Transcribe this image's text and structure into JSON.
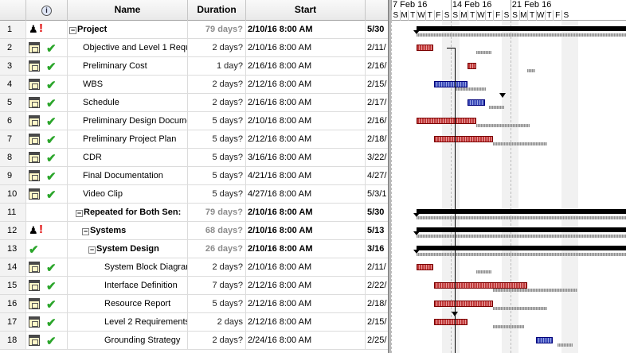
{
  "columns": {
    "indicators_icon": "info-icon",
    "name": "Name",
    "duration": "Duration",
    "start": "Start"
  },
  "timescale": {
    "weeks": [
      "7 Feb 16",
      "14 Feb 16",
      "21 Feb 16"
    ],
    "days": [
      "S",
      "M",
      "T",
      "W",
      "T",
      "F",
      "S",
      "S",
      "M",
      "T",
      "W",
      "T",
      "F",
      "S",
      "S",
      "M",
      "T",
      "W",
      "T",
      "F",
      "S"
    ]
  },
  "tasks": [
    {
      "id": "1",
      "name": "Project",
      "duration": "79 days?",
      "start": "2/10/16 8:00 AM",
      "finish": "5/30",
      "summary": true,
      "indent": 0,
      "icons": [
        "person-icon",
        "exclamation-icon"
      ]
    },
    {
      "id": "2",
      "name": "Objective and Level 1 Requ",
      "duration": "2 days?",
      "start": "2/10/16 8:00 AM",
      "finish": "2/11/",
      "summary": false,
      "indent": 1,
      "icons": [
        "calendar-icon",
        "check-icon"
      ]
    },
    {
      "id": "3",
      "name": "Preliminary Cost",
      "duration": "1 day?",
      "start": "2/16/16 8:00 AM",
      "finish": "2/16/",
      "summary": false,
      "indent": 1,
      "icons": [
        "calendar-icon",
        "check-icon"
      ]
    },
    {
      "id": "4",
      "name": "WBS",
      "duration": "2 days?",
      "start": "2/12/16 8:00 AM",
      "finish": "2/15/",
      "summary": false,
      "indent": 1,
      "icons": [
        "calendar-icon",
        "check-icon"
      ]
    },
    {
      "id": "5",
      "name": "Schedule",
      "duration": "2 days?",
      "start": "2/16/16 8:00 AM",
      "finish": "2/17/",
      "summary": false,
      "indent": 1,
      "icons": [
        "calendar-icon",
        "check-icon"
      ]
    },
    {
      "id": "6",
      "name": "Preliminary Design Docume",
      "duration": "5 days?",
      "start": "2/10/16 8:00 AM",
      "finish": "2/16/",
      "summary": false,
      "indent": 1,
      "icons": [
        "calendar-icon",
        "check-icon"
      ]
    },
    {
      "id": "7",
      "name": "Preliminary Project Plan",
      "duration": "5 days?",
      "start": "2/12/16 8:00 AM",
      "finish": "2/18/",
      "summary": false,
      "indent": 1,
      "icons": [
        "calendar-icon",
        "check-icon"
      ]
    },
    {
      "id": "8",
      "name": "CDR",
      "duration": "5 days?",
      "start": "3/16/16 8:00 AM",
      "finish": "3/22/",
      "summary": false,
      "indent": 1,
      "icons": [
        "calendar-icon",
        "check-icon"
      ]
    },
    {
      "id": "9",
      "name": "Final Documentation",
      "duration": "5 days?",
      "start": "4/21/16 8:00 AM",
      "finish": "4/27/",
      "summary": false,
      "indent": 1,
      "icons": [
        "calendar-icon",
        "check-icon"
      ]
    },
    {
      "id": "10",
      "name": "Video Clip",
      "duration": "5 days?",
      "start": "4/27/16 8:00 AM",
      "finish": "5/3/1",
      "summary": false,
      "indent": 1,
      "icons": [
        "calendar-icon",
        "check-icon"
      ]
    },
    {
      "id": "11",
      "name": "Repeated for Both Sen:",
      "duration": "79 days?",
      "start": "2/10/16 8:00 AM",
      "finish": "5/30",
      "summary": true,
      "indent": 1,
      "icons": []
    },
    {
      "id": "12",
      "name": "Systems",
      "duration": "68 days?",
      "start": "2/10/16 8:00 AM",
      "finish": "5/13",
      "summary": true,
      "indent": 2,
      "icons": [
        "person-icon",
        "exclamation-icon"
      ]
    },
    {
      "id": "13",
      "name": "System Design",
      "duration": "26 days?",
      "start": "2/10/16 8:00 AM",
      "finish": "3/16",
      "summary": true,
      "indent": 3,
      "icons": [
        "check-icon"
      ]
    },
    {
      "id": "14",
      "name": "System Block Diagram",
      "duration": "2 days?",
      "start": "2/10/16 8:00 AM",
      "finish": "2/11/",
      "summary": false,
      "indent": 4,
      "icons": [
        "calendar-icon",
        "check-icon"
      ]
    },
    {
      "id": "15",
      "name": "Interface Definition",
      "duration": "7 days?",
      "start": "2/12/16 8:00 AM",
      "finish": "2/22/",
      "summary": false,
      "indent": 4,
      "icons": [
        "calendar-icon",
        "check-icon"
      ]
    },
    {
      "id": "16",
      "name": "Resource Report",
      "duration": "5 days?",
      "start": "2/12/16 8:00 AM",
      "finish": "2/18/",
      "summary": false,
      "indent": 4,
      "icons": [
        "calendar-icon",
        "check-icon"
      ]
    },
    {
      "id": "17",
      "name": "Level 2 Requirements",
      "duration": "2 days",
      "start": "2/12/16 8:00 AM",
      "finish": "2/15/",
      "summary": false,
      "indent": 4,
      "icons": [
        "calendar-icon",
        "check-icon"
      ]
    },
    {
      "id": "18",
      "name": "Grounding Strategy",
      "duration": "2 days?",
      "start": "2/24/16 8:00 AM",
      "finish": "2/25/",
      "summary": false,
      "indent": 4,
      "icons": [
        "calendar-icon",
        "check-icon"
      ]
    }
  ],
  "gantt_bars": [
    {
      "row": 1,
      "type": "summary",
      "start": "2/10/16",
      "finish": "5/30/16"
    },
    {
      "row": 2,
      "type": "critical",
      "start": "2/10/16",
      "finish": "2/11/16"
    },
    {
      "row": 3,
      "type": "critical",
      "start": "2/16/16",
      "finish": "2/16/16"
    },
    {
      "row": 4,
      "type": "task",
      "start": "2/12/16",
      "finish": "2/15/16"
    },
    {
      "row": 5,
      "type": "task",
      "start": "2/16/16",
      "finish": "2/17/16"
    },
    {
      "row": 6,
      "type": "critical",
      "start": "2/10/16",
      "finish": "2/16/16"
    },
    {
      "row": 7,
      "type": "critical",
      "start": "2/12/16",
      "finish": "2/18/16"
    },
    {
      "row": 11,
      "type": "summary",
      "start": "2/10/16",
      "finish": "5/30/16"
    },
    {
      "row": 12,
      "type": "summary",
      "start": "2/10/16",
      "finish": "5/13/16"
    },
    {
      "row": 13,
      "type": "summary",
      "start": "2/10/16",
      "finish": "3/16/16"
    },
    {
      "row": 14,
      "type": "critical",
      "start": "2/10/16",
      "finish": "2/11/16"
    },
    {
      "row": 15,
      "type": "critical",
      "start": "2/12/16",
      "finish": "2/22/16"
    },
    {
      "row": 16,
      "type": "critical",
      "start": "2/12/16",
      "finish": "2/18/16"
    },
    {
      "row": 17,
      "type": "critical",
      "start": "2/12/16",
      "finish": "2/15/16"
    },
    {
      "row": 18,
      "type": "task",
      "start": "2/24/16",
      "finish": "2/25/16"
    }
  ],
  "colors": {
    "critical": "#c03a3a",
    "task": "#3b4bb8",
    "summary": "#000000",
    "check": "#2aa52a",
    "alert": "#e00000"
  }
}
